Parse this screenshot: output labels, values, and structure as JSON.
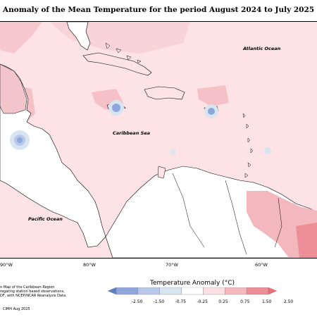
{
  "title": "Anomaly of the Mean Temperature for the period August 2024 to July 2025",
  "map": {
    "labels": {
      "atlantic": "Atlantic Ocean",
      "caribbean": "Caribbean Sea",
      "pacific": "Pacific Ocean"
    },
    "longitudes": [
      "90°W",
      "80°W",
      "70°W",
      "60°W"
    ]
  },
  "notes": {
    "line1": "n Map of the Caribbean Region",
    "line2": "regating station based observations,",
    "line3": "DF, with NCEP/NCAR Reanalysis Data.",
    "credit": "CIMH Aug 2025"
  },
  "legend": {
    "title": "Temperature Anomaly (°C)",
    "ticks": [
      "-2.50",
      "-1.50",
      "-0.75",
      "-0.25",
      "0.25",
      "0.75",
      "1.50",
      "2.50"
    ],
    "colors": [
      "#5b7fc4",
      "#8fa6dd",
      "#b8c8ea",
      "#d8e4ee",
      "#ffffff",
      "#fbe0e3",
      "#f3b8be",
      "#ee8e97",
      "#f06a77"
    ]
  }
}
